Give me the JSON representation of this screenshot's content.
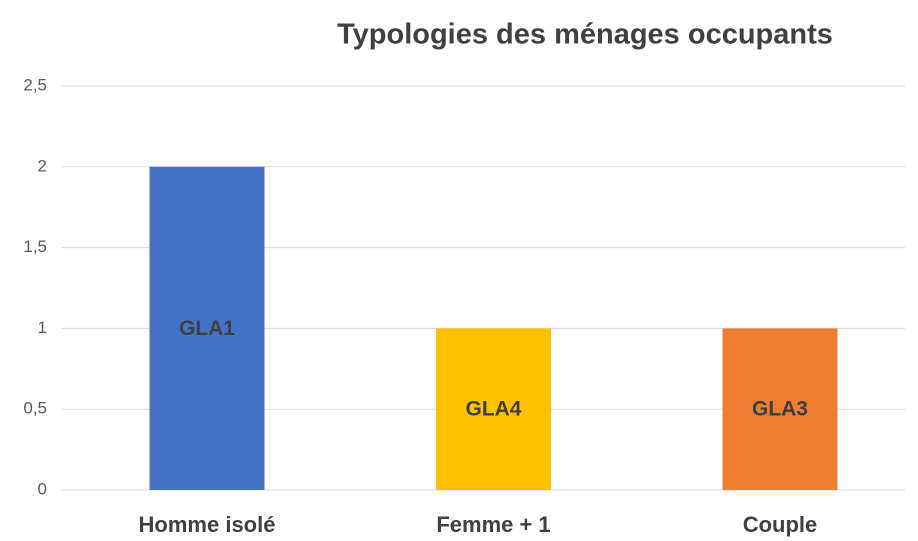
{
  "chart_data": {
    "type": "bar",
    "title": "Typologies des ménages occupants",
    "categories": [
      "Homme isolé",
      "Femme + 1",
      "Couple"
    ],
    "values": [
      2,
      1,
      1
    ],
    "colors": [
      "#4472c4",
      "#ffc000",
      "#ed7d31"
    ],
    "annotations": [
      "GLA1",
      "GLA4",
      "GLA3"
    ],
    "ylim": [
      0,
      2.5
    ],
    "yticks": [
      0,
      {
        "value": 0.5,
        "label": "0,5"
      },
      1,
      {
        "value": 1.5,
        "label": "1,5"
      },
      2,
      {
        "value": 2.5,
        "label": "2,5"
      }
    ],
    "grid": true
  }
}
